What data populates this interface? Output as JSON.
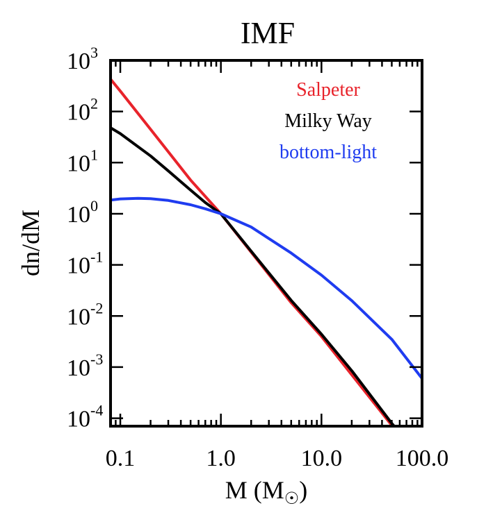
{
  "chart_data": {
    "type": "line",
    "title": "IMF",
    "xlabel": "M (M",
    "xlabel_symbol": "☉",
    "xlabel_close": ")",
    "ylabel": "dn/dM",
    "xscale": "log",
    "yscale": "log",
    "xlim": [
      0.08,
      100
    ],
    "ylim": [
      7e-05,
      1000
    ],
    "xticks": [
      {
        "value": 0.1,
        "label": "0.1"
      },
      {
        "value": 1,
        "label": "1.0"
      },
      {
        "value": 10,
        "label": "10.0"
      },
      {
        "value": 100,
        "label": "100.0"
      }
    ],
    "yticks": [
      {
        "value": 0.0001,
        "base": "10",
        "exp": "-4"
      },
      {
        "value": 0.001,
        "base": "10",
        "exp": "-3"
      },
      {
        "value": 0.01,
        "base": "10",
        "exp": "-2"
      },
      {
        "value": 0.1,
        "base": "10",
        "exp": "-1"
      },
      {
        "value": 1,
        "base": "10",
        "exp": "0"
      },
      {
        "value": 10,
        "base": "10",
        "exp": "1"
      },
      {
        "value": 100,
        "base": "10",
        "exp": "2"
      },
      {
        "value": 1000,
        "base": "10",
        "exp": "3"
      }
    ],
    "legend_position": "top-right",
    "grid": false,
    "series": [
      {
        "name": "Salpeter",
        "color": "#e8232b",
        "x": [
          0.08,
          0.1,
          0.2,
          0.5,
          1,
          2,
          5,
          10,
          20,
          50,
          55
        ],
        "y": [
          430,
          251,
          44.7,
          4.56,
          1.0,
          0.178,
          0.0182,
          0.00398,
          0.000708,
          7.24e-05,
          5.73e-05
        ]
      },
      {
        "name": "Milky Way",
        "color": "#000000",
        "x": [
          0.08,
          0.1,
          0.2,
          0.3,
          0.5,
          0.7,
          1,
          2,
          5,
          10,
          20,
          50,
          55
        ],
        "y": [
          48,
          37,
          13.5,
          6.9,
          2.9,
          1.65,
          1.0,
          0.185,
          0.0202,
          0.0044,
          0.00085,
          7.94e-05,
          6.4e-05
        ]
      },
      {
        "name": "bottom-light",
        "color": "#1f3cf0",
        "x": [
          0.08,
          0.1,
          0.15,
          0.2,
          0.3,
          0.5,
          0.7,
          1,
          2,
          5,
          10,
          20,
          50,
          100
        ],
        "y": [
          1.85,
          1.95,
          2.0,
          1.97,
          1.82,
          1.5,
          1.25,
          1.0,
          0.55,
          0.17,
          0.063,
          0.02,
          0.0035,
          0.0006
        ]
      }
    ]
  }
}
